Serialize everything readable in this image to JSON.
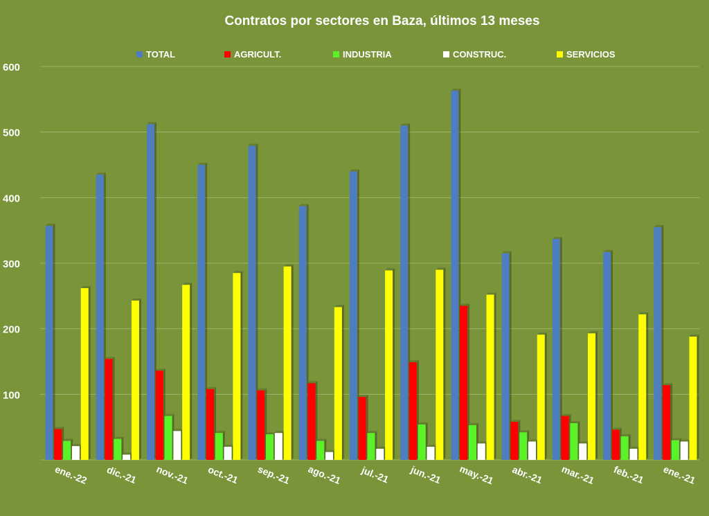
{
  "chart_data": {
    "type": "bar",
    "title": "Contratos por sectores en Baza, últimos 13 meses",
    "xlabel": "",
    "ylabel": "",
    "ylim": [
      0,
      600
    ],
    "yticks": [
      100,
      200,
      300,
      400,
      500,
      600
    ],
    "grid": true,
    "legend_position": "top",
    "categories": [
      "ene.-22",
      "dic.-21",
      "nov.-21",
      "oct.-21",
      "sep.-21",
      "ago.-21",
      "jul.-21",
      "jun.-21",
      "may.-21",
      "abr.-21",
      "mar.-21",
      "feb.-21",
      "ene.-21"
    ],
    "series": [
      {
        "name": "TOTAL",
        "color": "#4f7ec0",
        "values": [
          357,
          435,
          512,
          450,
          479,
          387,
          440,
          510,
          563,
          315,
          337,
          317,
          355
        ]
      },
      {
        "name": "AGRICULT.",
        "color": "#ff0000",
        "values": [
          47,
          154,
          136,
          108,
          106,
          117,
          96,
          149,
          235,
          58,
          67,
          46,
          114
        ]
      },
      {
        "name": "INDUSTRIA",
        "color": "#5cf22a",
        "values": [
          29,
          32,
          67,
          41,
          39,
          29,
          41,
          54,
          53,
          42,
          56,
          36,
          30
        ]
      },
      {
        "name": "CONSTRUC.",
        "color": "#ffffff",
        "values": [
          21,
          8,
          44,
          20,
          41,
          12,
          17,
          20,
          25,
          28,
          25,
          17,
          28
        ]
      },
      {
        "name": "SERVICIOS",
        "color": "#ffff00",
        "values": [
          262,
          243,
          267,
          285,
          295,
          233,
          289,
          290,
          252,
          191,
          193,
          222,
          188
        ]
      }
    ]
  }
}
